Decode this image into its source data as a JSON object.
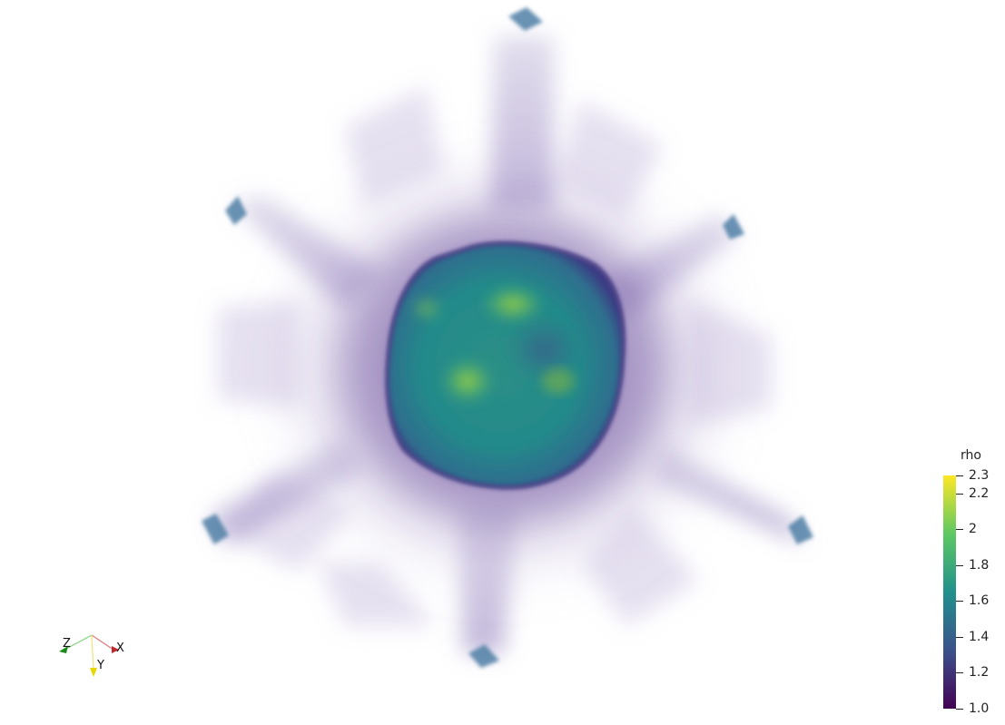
{
  "colorbar": {
    "title": "rho",
    "ticks": [
      {
        "label": "2.3",
        "value": 2.3
      },
      {
        "label": "2.2",
        "value": 2.2
      },
      {
        "label": "2",
        "value": 2.0
      },
      {
        "label": "1.8",
        "value": 1.8
      },
      {
        "label": "1.6",
        "value": 1.6
      },
      {
        "label": "1.4",
        "value": 1.4
      },
      {
        "label": "1.2",
        "value": 1.2
      },
      {
        "label": "1.0",
        "value": 1.0
      }
    ],
    "range": [
      1.0,
      2.3
    ],
    "colormap": [
      "#440154",
      "#3b528b",
      "#21908c",
      "#5dc863",
      "#fde725"
    ]
  },
  "axes": {
    "x_label": "X",
    "y_label": "Y",
    "z_label": "Z",
    "x_color": "#c0282d",
    "y_color": "#e6d800",
    "z_color": "#1a8a1a"
  },
  "render": {
    "core_color": "#2a8a86",
    "halo_color": "#7b5fa8",
    "tip_color": "#4f7fa6"
  }
}
